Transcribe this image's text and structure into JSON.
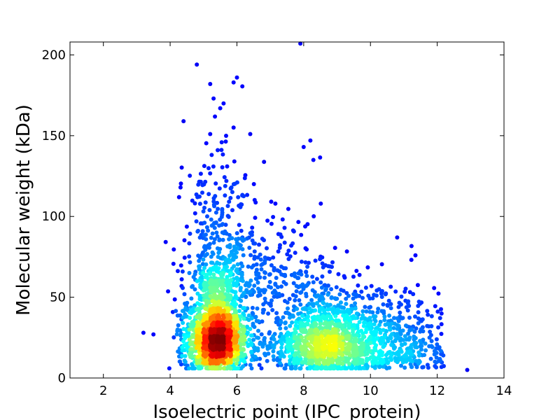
{
  "chart_data": {
    "type": "scatter",
    "title": "",
    "xlabel": "Isoelectric point (IPC_protein)",
    "ylabel": "Molecular weight (kDa)",
    "xlim": [
      1,
      14
    ],
    "ylim": [
      0,
      208
    ],
    "x_ticks": [
      2,
      4,
      6,
      8,
      10,
      12,
      14
    ],
    "y_ticks": [
      0,
      50,
      100,
      150,
      200
    ],
    "grid": false,
    "legend": "none",
    "color_scheme": "point density (jet colormap: blue low to dark red high)",
    "density_clusters": [
      {
        "x": 5.4,
        "y": 25,
        "peak_density": "highest"
      },
      {
        "x": 8.7,
        "y": 22,
        "peak_density": "medium"
      }
    ],
    "notable_points": [
      {
        "x": 4.8,
        "y": 194
      },
      {
        "x": 5.2,
        "y": 182
      },
      {
        "x": 5.9,
        "y": 183
      },
      {
        "x": 6.0,
        "y": 186
      },
      {
        "x": 5.3,
        "y": 173
      },
      {
        "x": 5.6,
        "y": 170
      },
      {
        "x": 5.5,
        "y": 167
      },
      {
        "x": 4.4,
        "y": 159
      },
      {
        "x": 5.9,
        "y": 155
      },
      {
        "x": 5.2,
        "y": 151
      },
      {
        "x": 6.4,
        "y": 151
      },
      {
        "x": 7.9,
        "y": 207
      },
      {
        "x": 8.0,
        "y": 143
      },
      {
        "x": 8.2,
        "y": 147
      },
      {
        "x": 10.8,
        "y": 87
      },
      {
        "x": 12.9,
        "y": 5
      },
      {
        "x": 3.2,
        "y": 28
      },
      {
        "x": 3.5,
        "y": 27
      }
    ]
  },
  "colors": {
    "low": "#0000c8",
    "mid": "#00e6ff",
    "high_mid": "#ffff00",
    "high": "#ff2000",
    "peak": "#800000"
  }
}
